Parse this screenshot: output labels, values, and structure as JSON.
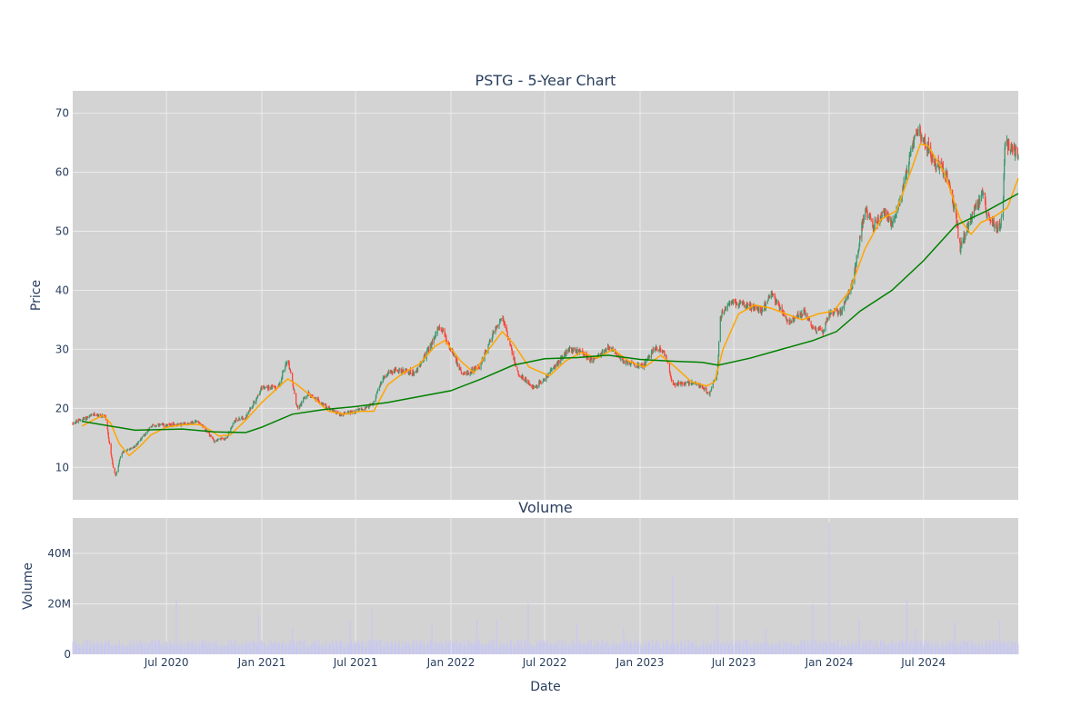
{
  "chart_data": {
    "type": "candlestick",
    "title": "PSTG - 5-Year Chart",
    "price_panel": {
      "ylabel": "Price",
      "ylim": [
        4.5,
        73.8
      ],
      "yticks": [
        10,
        20,
        30,
        40,
        50,
        60,
        70
      ],
      "ytick_labels": [
        "10",
        "20",
        "30",
        "40",
        "50",
        "60",
        "70"
      ],
      "candle_colors": {
        "up": "#3d9970",
        "down": "#ff4136"
      },
      "moving_averages": [
        {
          "color": "#ffa500",
          "points": [
            [
              "2020-01-20",
              17.0
            ],
            [
              "2020-02-10",
              18.0
            ],
            [
              "2020-03-01",
              18.8
            ],
            [
              "2020-03-15",
              17.5
            ],
            [
              "2020-04-01",
              14.0
            ],
            [
              "2020-04-20",
              12.0
            ],
            [
              "2020-05-10",
              13.5
            ],
            [
              "2020-06-01",
              15.5
            ],
            [
              "2020-07-01",
              16.8
            ],
            [
              "2020-08-01",
              17.2
            ],
            [
              "2020-09-01",
              17.3
            ],
            [
              "2020-09-20",
              16.5
            ],
            [
              "2020-10-10",
              15.3
            ],
            [
              "2020-11-01",
              15.5
            ],
            [
              "2020-12-01",
              18.0
            ],
            [
              "2021-01-01",
              21.0
            ],
            [
              "2021-02-01",
              23.5
            ],
            [
              "2021-02-20",
              25.0
            ],
            [
              "2021-03-10",
              24.0
            ],
            [
              "2021-04-10",
              21.8
            ],
            [
              "2021-05-10",
              19.5
            ],
            [
              "2021-06-10",
              19.0
            ],
            [
              "2021-07-10",
              19.5
            ],
            [
              "2021-08-05",
              19.5
            ],
            [
              "2021-09-01",
              24.0
            ],
            [
              "2021-10-01",
              26.0
            ],
            [
              "2021-11-01",
              27.5
            ],
            [
              "2021-12-01",
              30.5
            ],
            [
              "2021-12-20",
              31.5
            ],
            [
              "2022-01-20",
              28.0
            ],
            [
              "2022-02-15",
              26.0
            ],
            [
              "2022-03-15",
              30.0
            ],
            [
              "2022-04-10",
              33.0
            ],
            [
              "2022-05-01",
              31.0
            ],
            [
              "2022-06-01",
              27.0
            ],
            [
              "2022-07-10",
              25.5
            ],
            [
              "2022-08-10",
              28.0
            ],
            [
              "2022-09-10",
              29.5
            ],
            [
              "2022-10-10",
              28.5
            ],
            [
              "2022-11-10",
              30.0
            ],
            [
              "2022-12-10",
              28.0
            ],
            [
              "2023-01-10",
              27.0
            ],
            [
              "2023-02-10",
              29.0
            ],
            [
              "2023-03-10",
              27.0
            ],
            [
              "2023-04-10",
              24.5
            ],
            [
              "2023-05-10",
              23.8
            ],
            [
              "2023-05-25",
              24.5
            ],
            [
              "2023-06-10",
              30.0
            ],
            [
              "2023-07-10",
              36.0
            ],
            [
              "2023-08-10",
              37.5
            ],
            [
              "2023-09-10",
              37.0
            ],
            [
              "2023-10-10",
              36.0
            ],
            [
              "2023-11-10",
              35.0
            ],
            [
              "2023-12-10",
              36.0
            ],
            [
              "2024-01-10",
              36.5
            ],
            [
              "2024-02-10",
              40.0
            ],
            [
              "2024-03-10",
              47.0
            ],
            [
              "2024-04-10",
              52.0
            ],
            [
              "2024-05-10",
              53.5
            ],
            [
              "2024-06-10",
              61.0
            ],
            [
              "2024-06-25",
              64.8
            ],
            [
              "2024-07-10",
              64.5
            ],
            [
              "2024-08-10",
              60.0
            ],
            [
              "2024-09-10",
              52.0
            ],
            [
              "2024-10-01",
              49.5
            ],
            [
              "2024-10-20",
              51.5
            ],
            [
              "2024-11-15",
              52.5
            ],
            [
              "2024-12-10",
              54.0
            ],
            [
              "2024-12-31",
              59.0
            ]
          ]
        },
        {
          "color": "#008000",
          "points": [
            [
              "2020-01-20",
              17.8
            ],
            [
              "2020-05-01",
              16.3
            ],
            [
              "2020-08-01",
              16.5
            ],
            [
              "2020-10-01",
              16.0
            ],
            [
              "2020-12-01",
              15.9
            ],
            [
              "2021-01-01",
              16.8
            ],
            [
              "2021-03-01",
              19.0
            ],
            [
              "2021-05-01",
              19.8
            ],
            [
              "2021-07-01",
              20.3
            ],
            [
              "2021-09-01",
              21.0
            ],
            [
              "2021-11-01",
              22.0
            ],
            [
              "2022-01-01",
              23.0
            ],
            [
              "2022-03-01",
              25.0
            ],
            [
              "2022-05-01",
              27.3
            ],
            [
              "2022-07-01",
              28.4
            ],
            [
              "2022-09-01",
              28.6
            ],
            [
              "2022-11-01",
              29.0
            ],
            [
              "2023-01-01",
              28.3
            ],
            [
              "2023-03-01",
              28.0
            ],
            [
              "2023-05-01",
              27.8
            ],
            [
              "2023-06-01",
              27.3
            ],
            [
              "2023-08-01",
              28.5
            ],
            [
              "2023-10-01",
              30.0
            ],
            [
              "2023-12-01",
              31.5
            ],
            [
              "2024-01-15",
              33.0
            ],
            [
              "2024-03-01",
              36.5
            ],
            [
              "2024-05-01",
              40.0
            ],
            [
              "2024-07-01",
              45.0
            ],
            [
              "2024-09-01",
              51.0
            ],
            [
              "2024-11-01",
              53.5
            ],
            [
              "2024-12-31",
              56.4
            ]
          ]
        }
      ]
    },
    "volume_panel": {
      "title": "Volume",
      "ylabel": "Volume",
      "ylim": [
        0,
        54000000
      ],
      "yticks": [
        0,
        20000000,
        40000000
      ],
      "ytick_labels": [
        "0",
        "20M",
        "40M"
      ],
      "bar_color": "#c8c8f0",
      "spikes": [
        [
          "2020-07-20",
          22000000
        ],
        [
          "2020-12-25",
          16000000
        ],
        [
          "2021-03-01",
          11000000
        ],
        [
          "2021-06-20",
          13000000
        ],
        [
          "2021-08-01",
          18000000
        ],
        [
          "2021-11-25",
          13000000
        ],
        [
          "2022-02-20",
          14000000
        ],
        [
          "2022-03-30",
          14000000
        ],
        [
          "2022-05-30",
          20000000
        ],
        [
          "2022-09-01",
          12000000
        ],
        [
          "2022-11-30",
          11000000
        ],
        [
          "2023-03-05",
          31000000
        ],
        [
          "2023-05-30",
          20000000
        ],
        [
          "2023-08-31",
          10000000
        ],
        [
          "2023-11-30",
          20000000
        ],
        [
          "2024-01-01",
          52000000
        ],
        [
          "2024-02-28",
          14000000
        ],
        [
          "2024-05-30",
          22000000
        ],
        [
          "2024-06-15",
          10000000
        ],
        [
          "2024-08-30",
          13000000
        ],
        [
          "2024-11-25",
          13000000
        ]
      ]
    },
    "xaxis": {
      "label": "Date",
      "range": [
        "2020-01-02",
        "2024-12-31"
      ],
      "ticks": [
        {
          "date": "2020-07-01",
          "label": "Jul 2020"
        },
        {
          "date": "2021-01-01",
          "label": "Jan 2021"
        },
        {
          "date": "2021-07-01",
          "label": "Jul 2021"
        },
        {
          "date": "2022-01-01",
          "label": "Jan 2022"
        },
        {
          "date": "2022-07-01",
          "label": "Jul 2022"
        },
        {
          "date": "2023-01-01",
          "label": "Jan 2023"
        },
        {
          "date": "2023-07-01",
          "label": "Jul 2023"
        },
        {
          "date": "2024-01-01",
          "label": "Jan 2024"
        },
        {
          "date": "2024-07-01",
          "label": "Jul 2024"
        }
      ]
    },
    "price_anchors": [
      [
        "2020-01-02",
        17.5
      ],
      [
        "2020-02-15",
        19.0
      ],
      [
        "2020-03-05",
        18.5
      ],
      [
        "2020-03-20",
        10.0
      ],
      [
        "2020-03-25",
        8.5
      ],
      [
        "2020-04-05",
        12.5
      ],
      [
        "2020-05-01",
        13.5
      ],
      [
        "2020-06-01",
        17.0
      ],
      [
        "2020-08-01",
        17.3
      ],
      [
        "2020-09-01",
        17.8
      ],
      [
        "2020-10-01",
        14.5
      ],
      [
        "2020-10-25",
        15.0
      ],
      [
        "2020-11-10",
        18.0
      ],
      [
        "2020-12-01",
        18.5
      ],
      [
        "2021-01-01",
        23.5
      ],
      [
        "2021-02-01",
        23.5
      ],
      [
        "2021-02-20",
        28.5
      ],
      [
        "2021-03-10",
        20.0
      ],
      [
        "2021-04-01",
        22.5
      ],
      [
        "2021-05-01",
        20.5
      ],
      [
        "2021-06-01",
        19.0
      ],
      [
        "2021-07-01",
        19.5
      ],
      [
        "2021-08-01",
        20.5
      ],
      [
        "2021-08-25",
        25.5
      ],
      [
        "2021-09-15",
        26.5
      ],
      [
        "2021-10-25",
        26.0
      ],
      [
        "2021-11-25",
        31.0
      ],
      [
        "2021-12-10",
        34.0
      ],
      [
        "2022-01-01",
        30.0
      ],
      [
        "2022-01-25",
        25.5
      ],
      [
        "2022-02-25",
        27.0
      ],
      [
        "2022-03-25",
        33.0
      ],
      [
        "2022-04-10",
        35.5
      ],
      [
        "2022-05-10",
        26.0
      ],
      [
        "2022-06-10",
        23.5
      ],
      [
        "2022-07-01",
        25.0
      ],
      [
        "2022-08-15",
        30.0
      ],
      [
        "2022-09-10",
        29.5
      ],
      [
        "2022-10-01",
        28.0
      ],
      [
        "2022-11-01",
        30.5
      ],
      [
        "2022-12-01",
        28.0
      ],
      [
        "2023-01-05",
        27.0
      ],
      [
        "2023-02-01",
        30.5
      ],
      [
        "2023-02-20",
        29.0
      ],
      [
        "2023-03-05",
        24.0
      ],
      [
        "2023-04-15",
        24.5
      ],
      [
        "2023-05-15",
        22.5
      ],
      [
        "2023-05-30",
        26.0
      ],
      [
        "2023-06-05",
        35.5
      ],
      [
        "2023-06-25",
        38.0
      ],
      [
        "2023-07-25",
        37.5
      ],
      [
        "2023-08-25",
        36.5
      ],
      [
        "2023-09-10",
        39.5
      ],
      [
        "2023-10-15",
        34.5
      ],
      [
        "2023-11-15",
        36.5
      ],
      [
        "2023-12-01",
        33.5
      ],
      [
        "2023-12-20",
        33.0
      ],
      [
        "2024-01-01",
        36.0
      ],
      [
        "2024-01-25",
        36.5
      ],
      [
        "2024-02-15",
        41.0
      ],
      [
        "2024-03-01",
        49.0
      ],
      [
        "2024-03-10",
        54.0
      ],
      [
        "2024-03-25",
        51.0
      ],
      [
        "2024-04-15",
        53.0
      ],
      [
        "2024-05-01",
        51.5
      ],
      [
        "2024-05-20",
        56.0
      ],
      [
        "2024-06-05",
        63.0
      ],
      [
        "2024-06-20",
        67.0
      ],
      [
        "2024-07-10",
        64.0
      ],
      [
        "2024-07-25",
        61.0
      ],
      [
        "2024-08-05",
        61.0
      ],
      [
        "2024-08-20",
        58.0
      ],
      [
        "2024-09-01",
        53.0
      ],
      [
        "2024-09-10",
        47.0
      ],
      [
        "2024-09-25",
        51.0
      ],
      [
        "2024-10-10",
        54.0
      ],
      [
        "2024-10-25",
        57.0
      ],
      [
        "2024-11-01",
        52.5
      ],
      [
        "2024-11-15",
        51.0
      ],
      [
        "2024-11-25",
        50.5
      ],
      [
        "2024-12-01",
        53.0
      ],
      [
        "2024-12-05",
        65.0
      ],
      [
        "2024-12-31",
        63.0
      ]
    ]
  }
}
